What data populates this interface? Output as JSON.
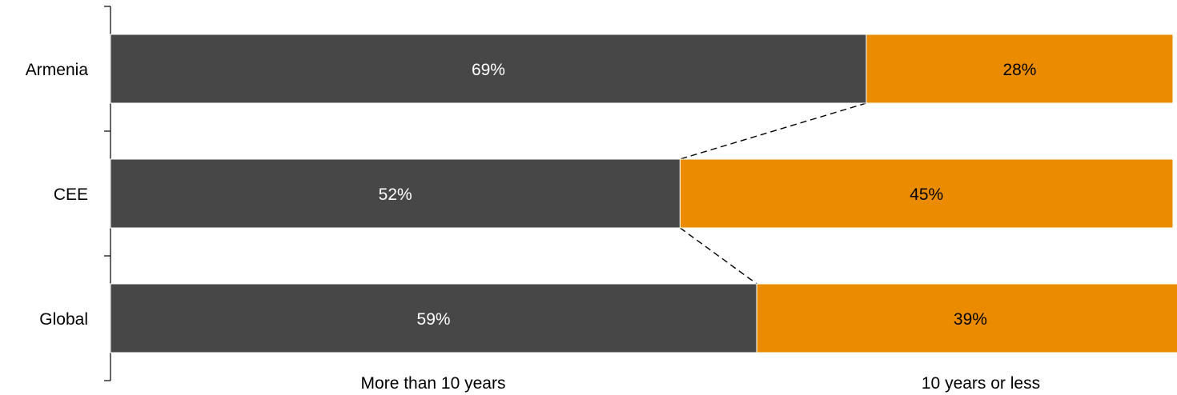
{
  "chart_data": {
    "type": "bar",
    "orientation": "horizontal",
    "stacked": true,
    "categories": [
      "Armenia",
      "CEE",
      "Global"
    ],
    "series": [
      {
        "name": "More than 10 years",
        "values": [
          69,
          52,
          59
        ],
        "labels": [
          "69%",
          "52%",
          "59%"
        ],
        "color": "#474747",
        "label_color": "#ffffff"
      },
      {
        "name": "10 years or less",
        "values": [
          28,
          45,
          39
        ],
        "labels": [
          "28%",
          "45%",
          "39%"
        ],
        "color": "#eb8c00",
        "label_color": "#000000"
      }
    ],
    "xlim": [
      0,
      97
    ],
    "legend_position": "bottom",
    "grid": false,
    "connector_lines": "dashed lines linking the end of the first series between adjacent bars"
  }
}
